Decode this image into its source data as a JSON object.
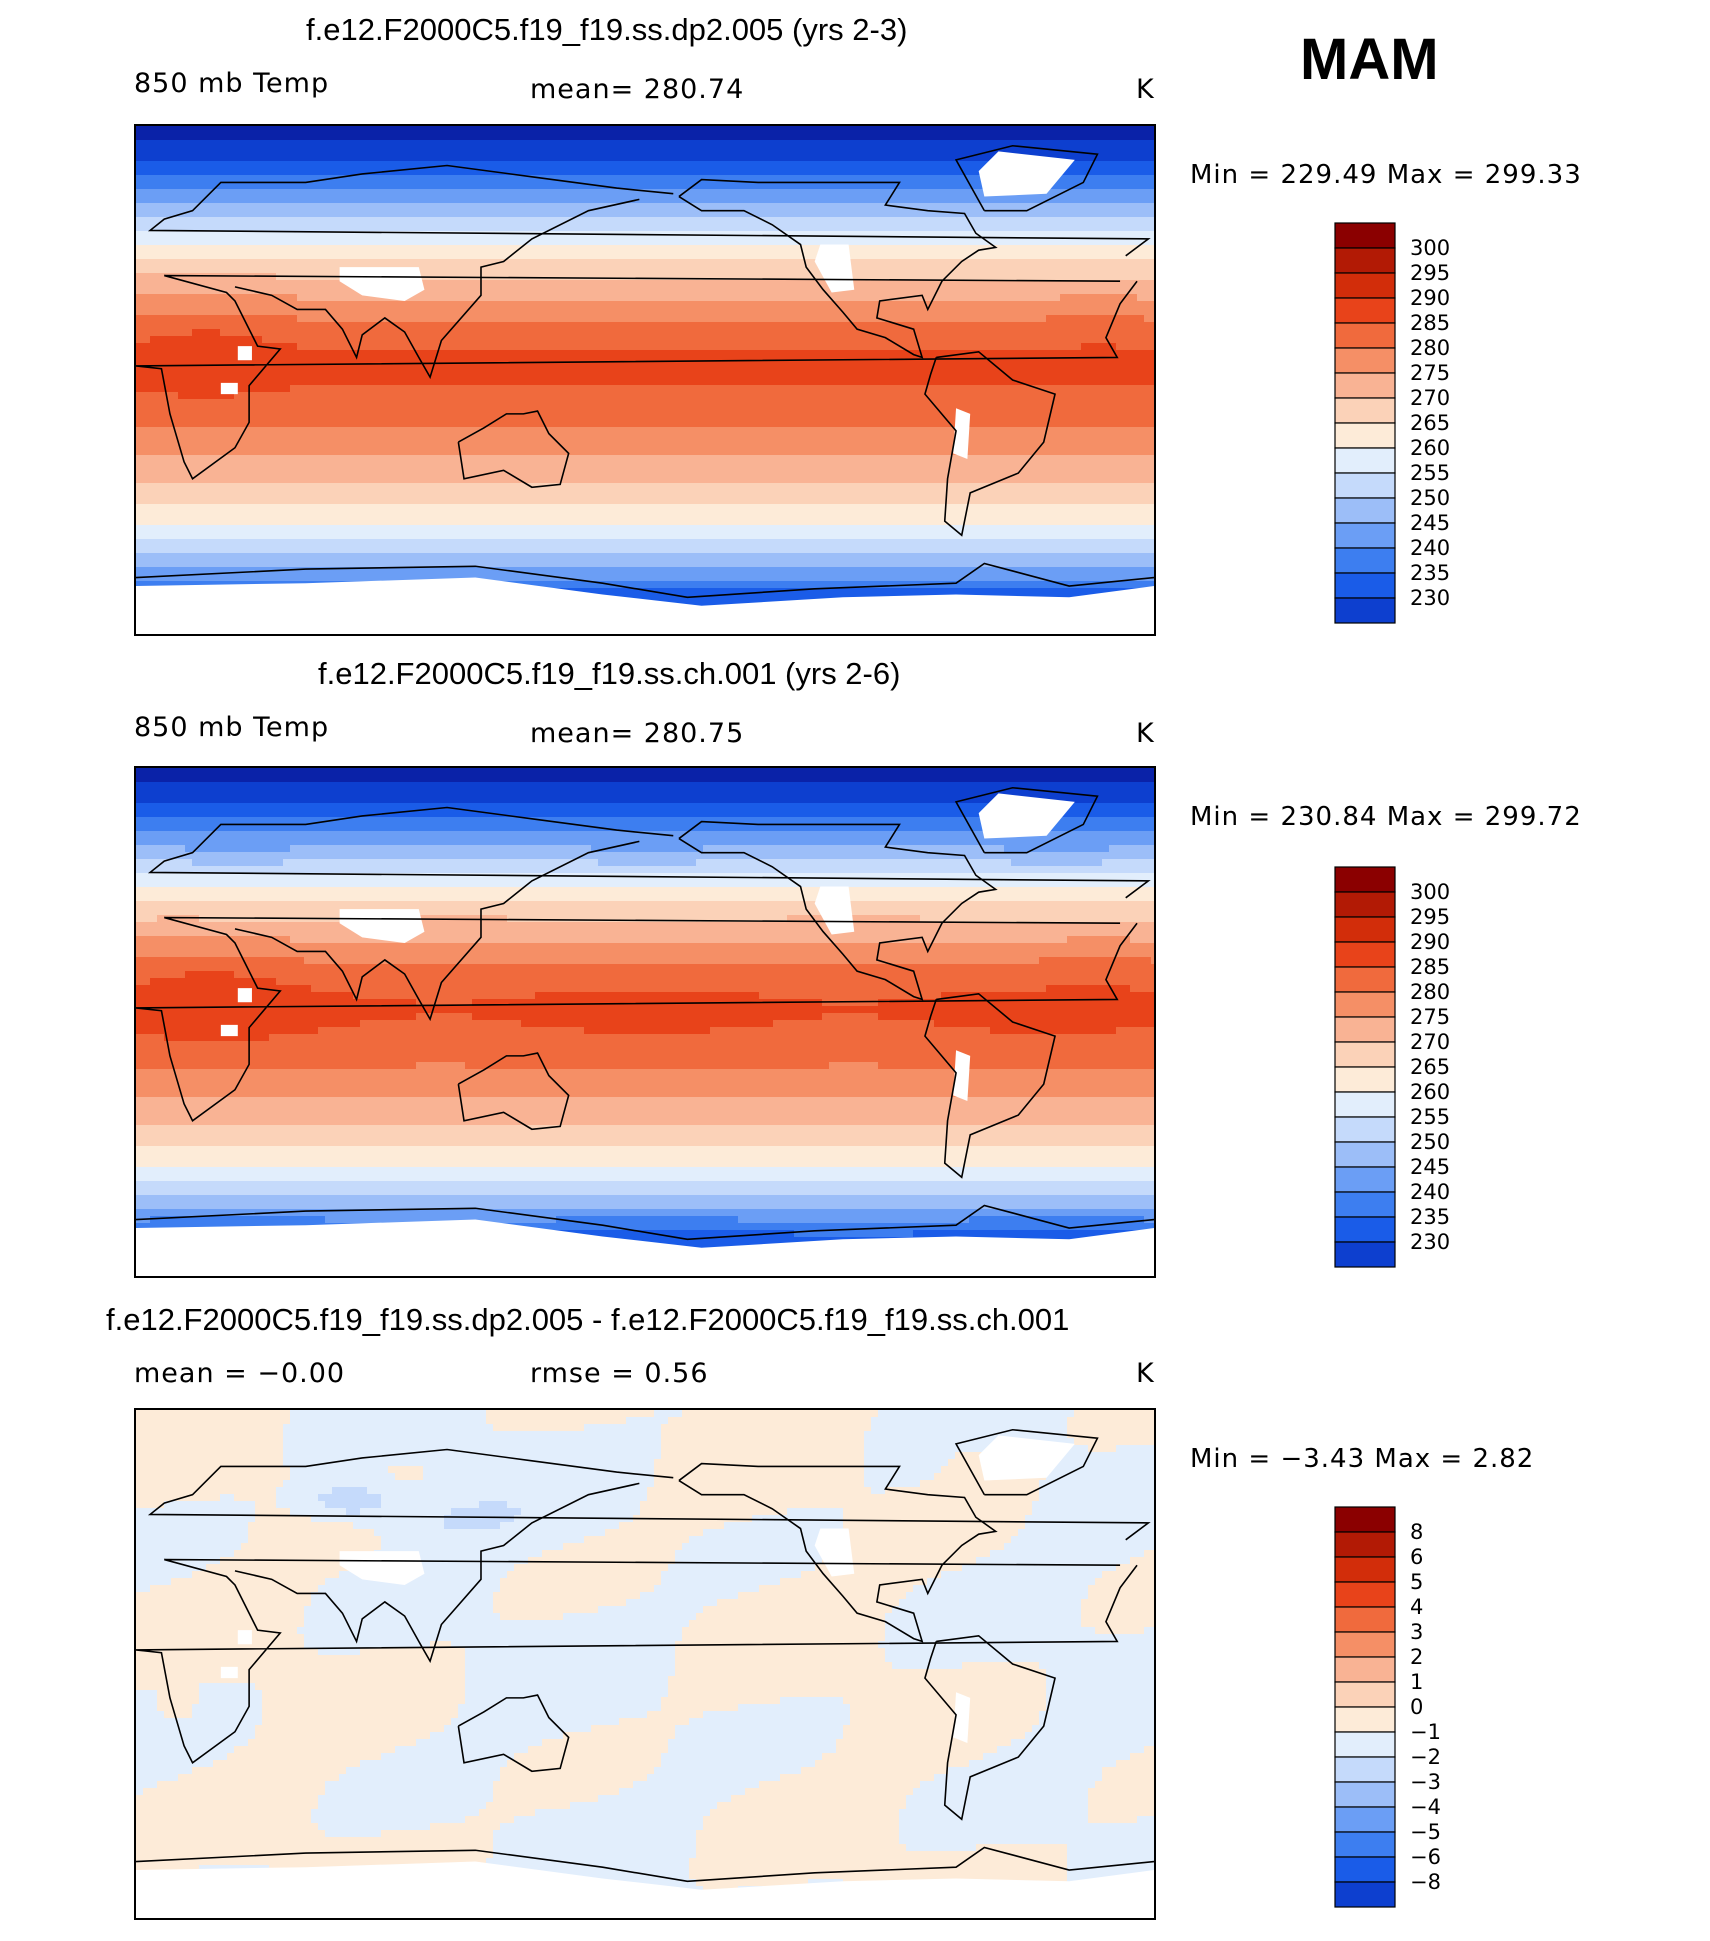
{
  "season": "MAM",
  "colors": {
    "abs_levels": [
      "#00008b",
      "#0a22a8",
      "#0d3fcf",
      "#1a5ce8",
      "#3d7ef0",
      "#6b9ef5",
      "#9cbef8",
      "#c5dafb",
      "#e2eefc",
      "#fdebd8",
      "#fbd2b8",
      "#f9b394",
      "#f58f66",
      "#f06a3d",
      "#e8431a",
      "#d22d0a",
      "#b21a05",
      "#8b0000"
    ],
    "diff_levels": [
      "#00008b",
      "#0a22a8",
      "#0d3fcf",
      "#1a5ce8",
      "#3d7ef0",
      "#6b9ef5",
      "#9cbef8",
      "#c5dafb",
      "#e2eefc",
      "#fdebd8",
      "#fbd2b8",
      "#f9b394",
      "#f58f66",
      "#f06a3d",
      "#e8431a",
      "#d22d0a",
      "#b21a05",
      "#8b0000"
    ],
    "missing": "#ffffff",
    "coast": "#000000"
  },
  "panels": [
    {
      "title": "f.e12.F2000C5.f19_f19.ss.dp2.005 (yrs 2-3)",
      "left_label": "850 mb Temp",
      "center_label": "mean= 280.74",
      "units": "K",
      "minmax": "Min = 229.49 Max = 299.33",
      "legend_labels": [
        "300",
        "295",
        "290",
        "285",
        "280",
        "275",
        "270",
        "265",
        "260",
        "255",
        "250",
        "245",
        "240",
        "235",
        "230"
      ],
      "field": "abs"
    },
    {
      "title": "f.e12.F2000C5.f19_f19.ss.ch.001 (yrs 2-6)",
      "left_label": "850 mb Temp",
      "center_label": "mean= 280.75",
      "units": "K",
      "minmax": "Min = 230.84 Max = 299.72",
      "legend_labels": [
        "300",
        "295",
        "290",
        "285",
        "280",
        "275",
        "270",
        "265",
        "260",
        "255",
        "250",
        "245",
        "240",
        "235",
        "230"
      ],
      "field": "abs"
    },
    {
      "title": "f.e12.F2000C5.f19_f19.ss.dp2.005 - f.e12.F2000C5.f19_f19.ss.ch.001",
      "left_label": "mean =  −0.00",
      "center_label": "rmse =   0.56",
      "units": "K",
      "minmax": "Min =  −3.43 Max =   2.82",
      "legend_labels": [
        "8",
        "6",
        "5",
        "4",
        "3",
        "2",
        "1",
        "0",
        "−1",
        "−2",
        "−3",
        "−4",
        "−5",
        "−6",
        "−8"
      ],
      "field": "diff"
    }
  ]
}
